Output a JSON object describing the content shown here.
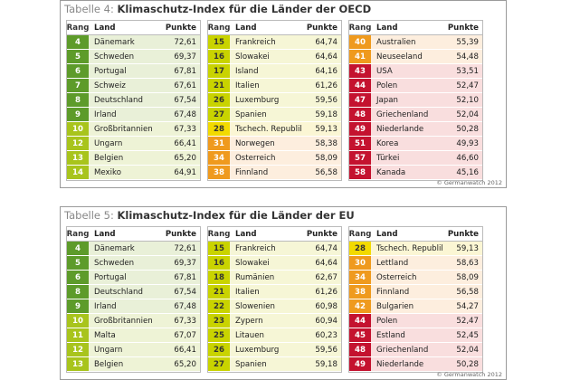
{
  "tables": [
    {
      "title_prefix": "Tabelle 4:",
      "title": "Klimaschutz-Index für die Länder der OECD",
      "header": [
        "Rang",
        "Land",
        "Punkte"
      ],
      "columns": [
        [
          [
            "4",
            "Dänemark",
            "72,61"
          ],
          [
            "5",
            "Schweden",
            "69,37"
          ],
          [
            "6",
            "Portugal",
            "67,81"
          ],
          [
            "7",
            "Schweiz",
            "67,61"
          ],
          [
            "8",
            "Deutschland",
            "67,54"
          ],
          [
            "9",
            "Irland",
            "67,48"
          ],
          [
            "10",
            "Großbritannien",
            "67,33"
          ],
          [
            "12",
            "Ungarn",
            "66,41"
          ],
          [
            "13",
            "Belgien",
            "65,20"
          ],
          [
            "14",
            "Mexiko",
            "64,91"
          ]
        ],
        [
          [
            "15",
            "Frankreich",
            "64,74"
          ],
          [
            "16",
            "Slowakei",
            "64,64"
          ],
          [
            "17",
            "Island",
            "64,16"
          ],
          [
            "21",
            "Italien",
            "61,26"
          ],
          [
            "26",
            "Luxemburg",
            "59,56"
          ],
          [
            "27",
            "Spanien",
            "59,18"
          ],
          [
            "28",
            "Tschech. Republik",
            "59,13"
          ],
          [
            "31",
            "Norwegen",
            "58,38"
          ],
          [
            "34",
            "Österreich",
            "58,09"
          ],
          [
            "38",
            "Finnland",
            "56,58"
          ]
        ],
        [
          [
            "40",
            "Australien",
            "55,39"
          ],
          [
            "41",
            "Neuseeland",
            "54,48"
          ],
          [
            "43",
            "USA",
            "53,51"
          ],
          [
            "44",
            "Polen",
            "52,47"
          ],
          [
            "47",
            "Japan",
            "52,10"
          ],
          [
            "48",
            "Griechenland",
            "52,04"
          ],
          [
            "49",
            "Niederlande",
            "50,28"
          ],
          [
            "51",
            "Korea",
            "49,93"
          ],
          [
            "57",
            "Türkei",
            "46,60"
          ],
          [
            "58",
            "Kanada",
            "45,16"
          ]
        ]
      ],
      "credit": "© Germanwatch 2012"
    },
    {
      "title_prefix": "Tabelle 5:",
      "title": "Klimaschutz-Index für die Länder der EU",
      "header": [
        "Rang",
        "Land",
        "Punkte"
      ],
      "columns": [
        [
          [
            "4",
            "Dänemark",
            "72,61"
          ],
          [
            "5",
            "Schweden",
            "69,37"
          ],
          [
            "6",
            "Portugal",
            "67,81"
          ],
          [
            "8",
            "Deutschland",
            "67,54"
          ],
          [
            "9",
            "Irland",
            "67,48"
          ],
          [
            "10",
            "Großbritannien",
            "67,33"
          ],
          [
            "11",
            "Malta",
            "67,07"
          ],
          [
            "12",
            "Ungarn",
            "66,41"
          ],
          [
            "13",
            "Belgien",
            "65,20"
          ]
        ],
        [
          [
            "15",
            "Frankreich",
            "64,74"
          ],
          [
            "16",
            "Slowakei",
            "64,64"
          ],
          [
            "18",
            "Rumänien",
            "62,67"
          ],
          [
            "21",
            "Italien",
            "61,26"
          ],
          [
            "22",
            "Slowenien",
            "60,98"
          ],
          [
            "23",
            "Zypern",
            "60,94"
          ],
          [
            "25",
            "Litauen",
            "60,23"
          ],
          [
            "26",
            "Luxemburg",
            "59,56"
          ],
          [
            "27",
            "Spanien",
            "59,18"
          ]
        ],
        [
          [
            "28",
            "Tschech. Republik",
            "59,13"
          ],
          [
            "30",
            "Lettland",
            "58,63"
          ],
          [
            "34",
            "Österreich",
            "58,09"
          ],
          [
            "38",
            "Finnland",
            "56,58"
          ],
          [
            "42",
            "Bulgarien",
            "54,27"
          ],
          [
            "44",
            "Polen",
            "52,47"
          ],
          [
            "45",
            "Estland",
            "52,45"
          ],
          [
            "48",
            "Griechenland",
            "52,04"
          ],
          [
            "49",
            "Niederlande",
            "50,28"
          ]
        ]
      ],
      "credit": "© Germanwatch 2012"
    }
  ]
}
